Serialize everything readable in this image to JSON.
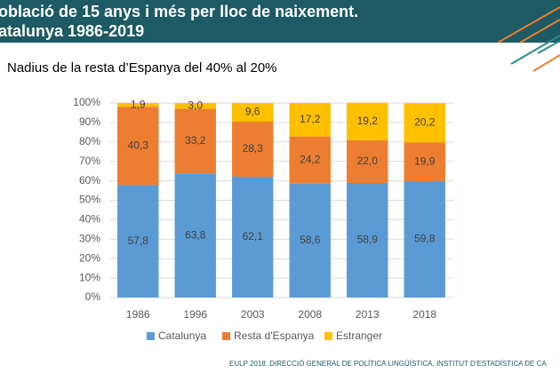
{
  "chart_data": {
    "type": "stacked_bar",
    "title": [
      "oblació de 15 anys i més per lloc de naixement.",
      "atalunya 1986-2019"
    ],
    "subtitle": "Nadius de la resta d’Espanya del 40% al 20%",
    "source": "EULP 2018. DIRECCIÓ GENERAL DE POLÍTICA LINGÜÍSTICA. INSTITUT D’ESTADÍSTICA DE CA",
    "categories": [
      "1986",
      "1996",
      "2003",
      "2008",
      "2013",
      "2018"
    ],
    "series": [
      {
        "name": "Catalunya",
        "color": "#5b9bd5",
        "values": [
          57.8,
          63.8,
          62.1,
          58.6,
          58.9,
          59.8
        ],
        "value_labels": [
          "57,8",
          "63,8",
          "62,1",
          "58,6",
          "58,9",
          "59,8"
        ]
      },
      {
        "name": "Resta d'Espanya",
        "color": "#ed7d31",
        "values": [
          40.3,
          33.2,
          28.3,
          24.2,
          22.0,
          19.9
        ],
        "value_labels": [
          "40,3",
          "33,2",
          "28,3",
          "24,2",
          "22,0",
          "19,9"
        ]
      },
      {
        "name": "Estranger",
        "color": "#ffc000",
        "values": [
          1.9,
          3.0,
          9.6,
          17.2,
          19.2,
          20.2
        ],
        "value_labels": [
          "1,9",
          "3,0",
          "9,6",
          "17,2",
          "19,2",
          "20,2"
        ]
      }
    ],
    "ylim": [
      0,
      100
    ],
    "yticks": [
      {
        "value": 0,
        "label": "0%"
      },
      {
        "value": 10,
        "label": "10%"
      },
      {
        "value": 20,
        "label": "20%"
      },
      {
        "value": 30,
        "label": "30%"
      },
      {
        "value": 40,
        "label": "40%"
      },
      {
        "value": 50,
        "label": "50%"
      },
      {
        "value": 60,
        "label": "60%"
      },
      {
        "value": 70,
        "label": "70%"
      },
      {
        "value": 80,
        "label": "80%"
      },
      {
        "value": 90,
        "label": "90%"
      },
      {
        "value": 100,
        "label": "100%"
      }
    ],
    "grid": true,
    "legend": "bottom"
  }
}
